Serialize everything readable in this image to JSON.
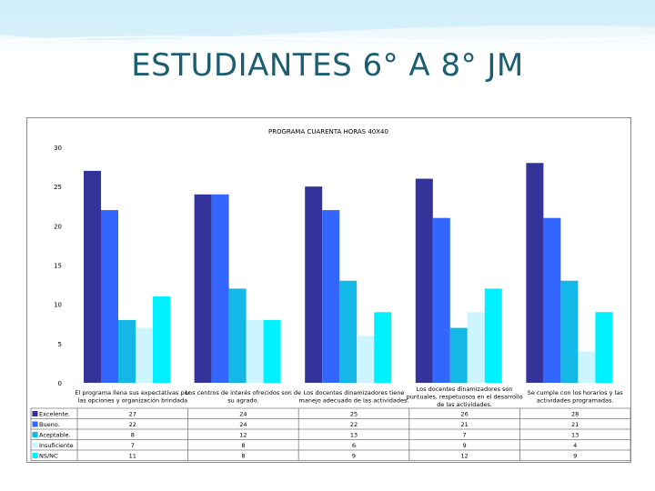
{
  "slide": {
    "title": "ESTUDIANTES 6° A 8° JM"
  },
  "colors": {
    "title": "#1b5e71",
    "series": [
      "#33339a",
      "#3366ff",
      "#14b8e6",
      "#ccf5ff",
      "#00f0ff"
    ]
  },
  "chart_data": {
    "type": "bar",
    "title": "PROGRAMA CUARENTA HORAS 40X40",
    "categories": [
      [
        "El programa llena sus expectativas por",
        "las opciones y organización brindada"
      ],
      [
        "Los centros de interés ofrecidos son de",
        "su agrado."
      ],
      [
        "Los docentes dinamizadores tiene",
        "manejo adecuado de las actividades."
      ],
      [
        "Los docentes dinamizadores son",
        "puntuales, respetuosos en el desarrollo",
        "de las actividades."
      ],
      [
        "Se cumple con los horarios y las",
        "actividades programadas."
      ]
    ],
    "series": [
      {
        "name": "Excelente.",
        "values": [
          27,
          24,
          25,
          26,
          28
        ]
      },
      {
        "name": "Bueno.",
        "values": [
          22,
          24,
          22,
          21,
          21
        ]
      },
      {
        "name": "Aceptable.",
        "values": [
          8,
          12,
          13,
          7,
          13
        ]
      },
      {
        "name": "Insuficiente",
        "values": [
          7,
          8,
          6,
          9,
          4
        ]
      },
      {
        "name": "NS/NC",
        "values": [
          11,
          8,
          9,
          12,
          9
        ]
      }
    ],
    "yticks": [
      0,
      5,
      10,
      15,
      20,
      25,
      30
    ],
    "ylim": [
      0,
      30
    ],
    "legend": "data-table-below",
    "grid": false
  }
}
